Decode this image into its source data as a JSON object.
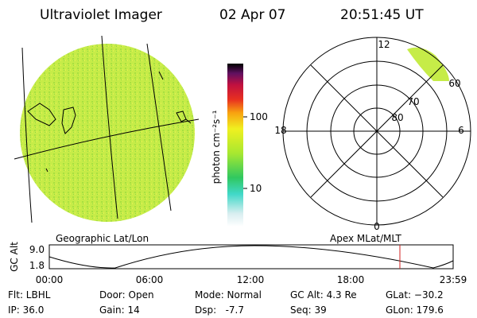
{
  "header": {
    "title": "Ultraviolet Imager",
    "date": "02 Apr 07",
    "time": "20:51:45 UT"
  },
  "colorbar": {
    "label": "photon cm⁻²s⁻¹",
    "ticks": [
      "100",
      "10"
    ]
  },
  "polar": {
    "mlt_labels": [
      "12",
      "18",
      "6",
      "0"
    ],
    "mlat_labels": [
      "60",
      "70",
      "80"
    ]
  },
  "panels": {
    "left_title": "Geographic Lat/Lon",
    "right_title": "Apex MLat/MLT"
  },
  "orbit": {
    "axis_label": "GC Alt",
    "yticks": [
      "9.0",
      "1.8"
    ],
    "xticks": [
      "00:00",
      "06:00",
      "12:00",
      "18:00",
      "23:59"
    ]
  },
  "footer": {
    "rows": [
      [
        "Flt: LBHL",
        "Door: Open",
        "Mode: Normal",
        "GC Alt: 4.3 Re",
        "GLat: −30.2"
      ],
      [
        "IP: 36.0",
        "Gain: 14",
        "Dsp:   -7.7",
        "Seq: 39",
        "GLon: 179.6"
      ]
    ]
  }
}
